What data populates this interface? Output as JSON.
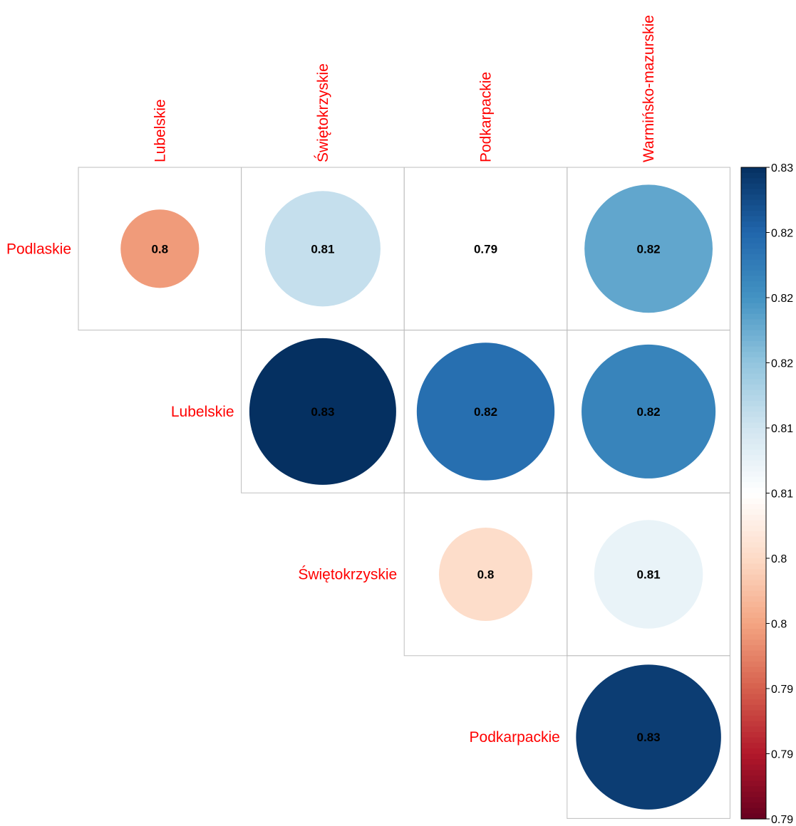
{
  "chart_data": {
    "type": "heatmap",
    "subtype": "corrplot-upper-circles",
    "row_labels": [
      "Podlaskie",
      "Lubelskie",
      "Świętokrzyskie",
      "Podkarpackie"
    ],
    "col_labels": [
      "Lubelskie",
      "Świętokrzyskie",
      "Podkarpackie",
      "Warmińsko-mazurskie"
    ],
    "label_color": "#FF0000",
    "cells": [
      {
        "row": 0,
        "col": 0,
        "label": "0.8",
        "value": 0.798
      },
      {
        "row": 0,
        "col": 1,
        "label": "0.81",
        "value": 0.812
      },
      {
        "row": 0,
        "col": 2,
        "label": "0.79",
        "value": 0.786
      },
      {
        "row": 0,
        "col": 3,
        "label": "0.82",
        "value": 0.818
      },
      {
        "row": 1,
        "col": 1,
        "label": "0.83",
        "value": 0.828
      },
      {
        "row": 1,
        "col": 2,
        "label": "0.82",
        "value": 0.823
      },
      {
        "row": 1,
        "col": 3,
        "label": "0.82",
        "value": 0.821
      },
      {
        "row": 2,
        "col": 2,
        "label": "0.8",
        "value": 0.803
      },
      {
        "row": 2,
        "col": 3,
        "label": "0.81",
        "value": 0.809
      },
      {
        "row": 3,
        "col": 3,
        "label": "0.83",
        "value": 0.827
      }
    ],
    "colorbar": {
      "range": [
        0.786,
        0.828
      ],
      "tick_labels": [
        "0.83",
        "0.82",
        "0.82",
        "0.82",
        "0.81",
        "0.81",
        "0.8",
        "0.8",
        "0.79",
        "0.79",
        "0.79"
      ],
      "palette": [
        "#67001F",
        "#B2182B",
        "#D6604D",
        "#F4A582",
        "#FDDBC7",
        "#FFFFFF",
        "#D1E5F0",
        "#92C5DE",
        "#4393C3",
        "#2166AC",
        "#053061"
      ]
    },
    "legend": "right"
  }
}
